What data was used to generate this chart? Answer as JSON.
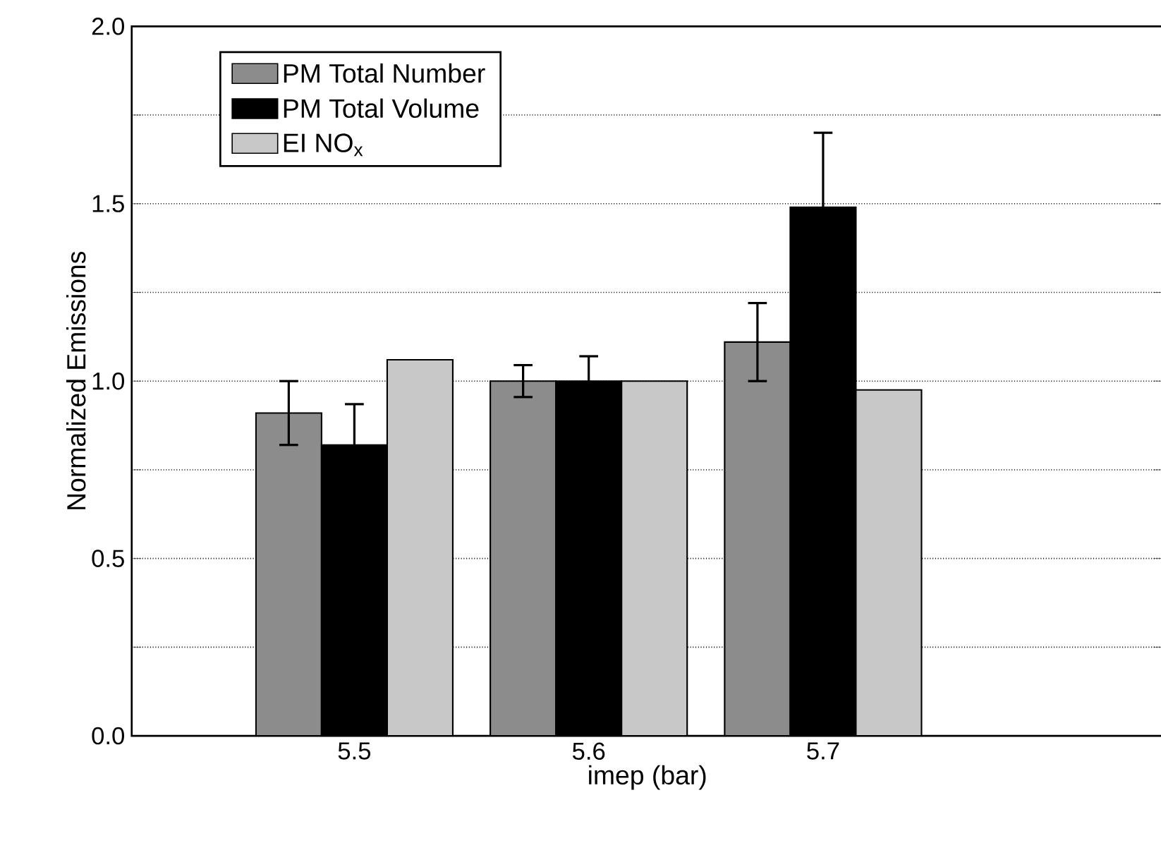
{
  "chart_data": {
    "type": "bar",
    "xlabel": "imep (bar)",
    "ylabel": "Normalized Emissions",
    "categories": [
      "5.5",
      "5.6",
      "5.7"
    ],
    "series": [
      {
        "name": "PM Total Number",
        "color": "#8c8c8c",
        "values": [
          0.91,
          1.0,
          1.11
        ],
        "errors": [
          0.09,
          0.045,
          0.11
        ]
      },
      {
        "name": "PM Total Volume",
        "color": "#000000",
        "values": [
          0.82,
          1.0,
          1.49
        ],
        "errors": [
          0.115,
          0.07,
          0.21
        ]
      },
      {
        "name": "EI NO$_{x}$",
        "color": "#c8c8c8",
        "values": [
          1.06,
          1.0,
          0.975
        ]
      }
    ],
    "ylim": [
      0,
      2.0
    ],
    "yticks": [
      {
        "value": 0,
        "label": "0.0"
      },
      {
        "value": 0.25,
        "label": null
      },
      {
        "value": 0.5,
        "label": "0.5"
      },
      {
        "value": 0.75,
        "label": null
      },
      {
        "value": 1.0,
        "label": "1.0"
      },
      {
        "value": 1.25,
        "label": null
      },
      {
        "value": 1.5,
        "label": "1.5"
      },
      {
        "value": 1.75,
        "label": null
      },
      {
        "value": 2.0,
        "label": "2.0"
      }
    ],
    "grid": "y",
    "legend": "top left"
  }
}
